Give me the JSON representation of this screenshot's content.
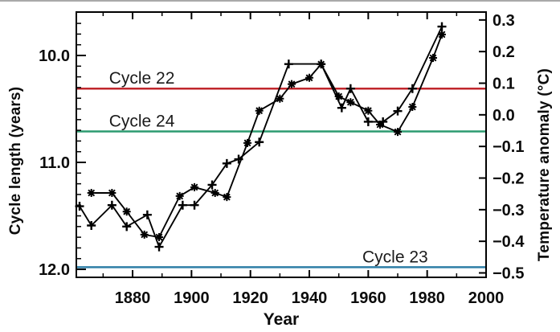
{
  "chart_data": {
    "type": "line",
    "title": "",
    "xlabel": "Year",
    "x_axis": {
      "range": [
        1860.9,
        2000
      ],
      "major_ticks": [
        1880,
        1900,
        1920,
        1940,
        1960,
        1980,
        2000
      ],
      "minor_step": 10
    },
    "left_axis": {
      "label": "Cycle length (years)",
      "inverted": true,
      "range": [
        9.594,
        12.075
      ],
      "major_ticks": [
        10.0,
        11.0,
        12.0
      ],
      "minor_step": 0.1
    },
    "right_axis": {
      "label": "Temperature anomaly (°C)",
      "range": [
        0.325,
        -0.514
      ],
      "major_ticks": [
        0.3,
        0.2,
        0.1,
        0.0,
        -0.1,
        -0.2,
        -0.3,
        -0.4,
        -0.5
      ]
    },
    "grid": false,
    "legend": "none",
    "series": [
      {
        "name": "solar-cycle-length",
        "axis": "left",
        "marker": "plus",
        "color": "#000000",
        "points": [
          [
            1862,
            11.41
          ],
          [
            1866,
            11.59
          ],
          [
            1873,
            11.4
          ],
          [
            1878,
            11.6
          ],
          [
            1885,
            11.49
          ],
          [
            1889,
            11.79
          ],
          [
            1897,
            11.4
          ],
          [
            1901,
            11.4
          ],
          [
            1907,
            11.21
          ],
          [
            1912,
            11.01
          ],
          [
            1916,
            10.97
          ],
          [
            1923,
            10.81
          ],
          [
            1933,
            10.08
          ],
          [
            1944,
            10.08
          ],
          [
            1951,
            10.49
          ],
          [
            1954,
            10.31
          ],
          [
            1960,
            10.62
          ],
          [
            1965,
            10.62
          ],
          [
            1970,
            10.52
          ],
          [
            1975,
            10.31
          ],
          [
            1985,
            9.73
          ]
        ]
      },
      {
        "name": "temperature-anomaly",
        "axis": "right",
        "marker": "asterisk",
        "color": "#000000",
        "points": [
          [
            1866,
            -0.247
          ],
          [
            1873,
            -0.247
          ],
          [
            1878,
            -0.306
          ],
          [
            1884,
            -0.379
          ],
          [
            1889,
            -0.387
          ],
          [
            1896,
            -0.257
          ],
          [
            1901,
            -0.229
          ],
          [
            1908,
            -0.247
          ],
          [
            1912,
            -0.26
          ],
          [
            1919,
            -0.089
          ],
          [
            1923,
            0.013
          ],
          [
            1930,
            0.051
          ],
          [
            1934,
            0.097
          ],
          [
            1940,
            0.117
          ],
          [
            1944,
            0.16
          ],
          [
            1950,
            0.058
          ],
          [
            1954,
            0.04
          ],
          [
            1960,
            0.013
          ],
          [
            1964,
            -0.031
          ],
          [
            1970,
            -0.054
          ],
          [
            1975,
            0.025
          ],
          [
            1982,
            0.18
          ],
          [
            1985,
            0.254
          ]
        ]
      }
    ],
    "reference_lines": [
      {
        "label": "Cycle 22",
        "color": "#c0262c",
        "cycle_length_value": 10.31,
        "label_start_year": 1872
      },
      {
        "label": "Cycle 24",
        "color": "#2d9b70",
        "cycle_length_value": 10.71,
        "label_start_year": 1872
      },
      {
        "label": "Cycle 23",
        "color": "#2e7ea6",
        "cycle_length_value": 11.98,
        "label_start_year": 1958
      }
    ]
  }
}
